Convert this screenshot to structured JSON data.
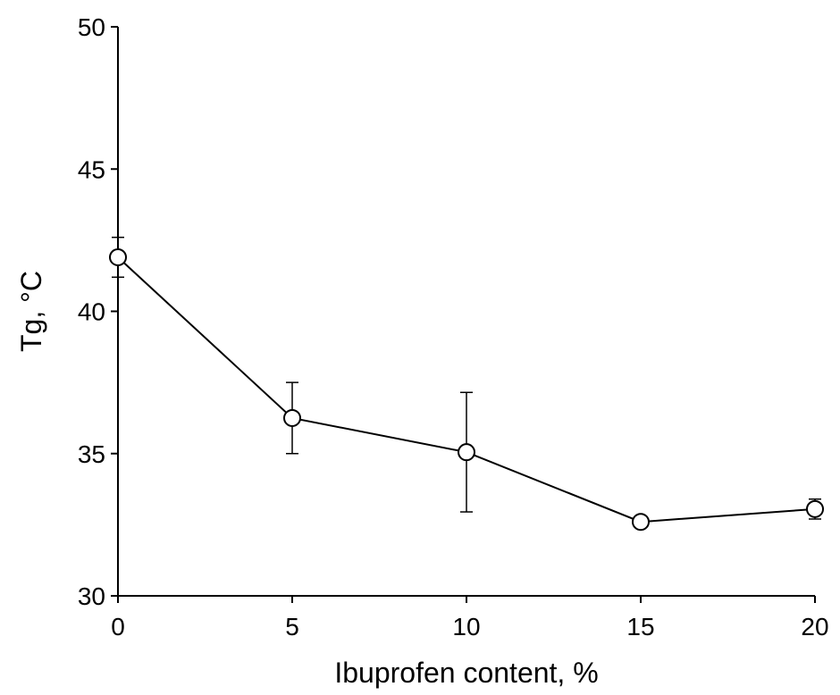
{
  "chart_data": {
    "type": "line",
    "title": "",
    "xlabel": "Ibuprofen content, %",
    "ylabel": "Tg, °C",
    "x": [
      0,
      5,
      10,
      15,
      20
    ],
    "xlim": [
      0,
      20
    ],
    "ylim": [
      30,
      50
    ],
    "xticks": [
      0,
      5,
      10,
      15,
      20
    ],
    "yticks": [
      30,
      35,
      40,
      45,
      50
    ],
    "grid": false,
    "legend": "none",
    "series": [
      {
        "values": [
          41.9,
          36.25,
          35.05,
          32.6,
          33.05
        ],
        "error": [
          0.7,
          1.25,
          2.1,
          0.2,
          0.35
        ],
        "color": "#000000",
        "marker": "open-circle"
      }
    ]
  }
}
